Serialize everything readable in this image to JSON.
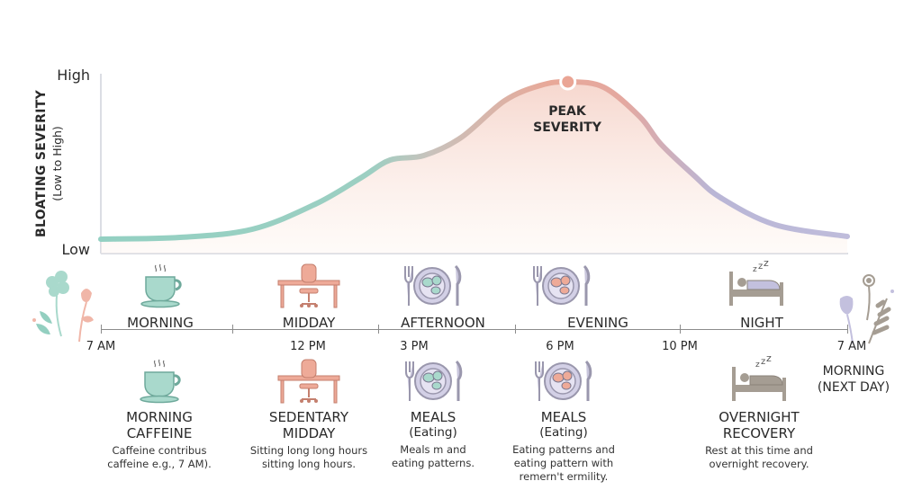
{
  "chart_data": {
    "type": "area",
    "title": "",
    "ylabel": "BLOATING SEVERITY",
    "ylabel_sub": "(Low to High)",
    "y_tick_labels": {
      "low": "Low",
      "high": "High"
    },
    "ylim": [
      0,
      1
    ],
    "x_tick_labels": [
      "7 AM",
      "12 PM",
      "3 PM",
      "6 PM",
      "10 PM",
      "7 AM"
    ],
    "grid": false,
    "series": [
      {
        "points": [
          {
            "time": "7:00 AM",
            "severity": 0.08
          },
          {
            "time": "9:33 AM",
            "severity": 0.09
          },
          {
            "time": "11:52 AM",
            "severity": 0.135
          },
          {
            "time": "1:54 PM",
            "severity": 0.275
          },
          {
            "time": "3:21 PM",
            "severity": 0.42
          },
          {
            "time": "4:18 PM",
            "severity": 0.52
          },
          {
            "time": "5:23 PM",
            "severity": 0.545
          },
          {
            "time": "6:35 PM",
            "severity": 0.645
          },
          {
            "time": "7:59 PM",
            "severity": 0.85
          },
          {
            "time": "9:08 PM",
            "severity": 0.935
          },
          {
            "time": "10:01 PM",
            "severity": 0.955
          },
          {
            "time": "11:10 PM",
            "severity": 0.925
          },
          {
            "time": "12:20 AM",
            "severity": 0.76
          },
          {
            "time": "1:00 AM",
            "severity": 0.61
          },
          {
            "time": "2:04 AM",
            "severity": 0.435
          },
          {
            "time": "2:56 AM",
            "severity": 0.31
          },
          {
            "time": "4:41 AM",
            "severity": 0.16
          },
          {
            "time": "7:00 AM",
            "severity": 0.095
          }
        ]
      }
    ],
    "annotation": {
      "line1": "PEAK",
      "line2": "SEVERITY",
      "time": "10:01 PM",
      "severity": 0.955
    },
    "colors": {
      "morning": "#93d0c2",
      "midday": "#c7c1bb",
      "evening": "#e8a898",
      "night": "#b9b6d6",
      "fill": "#f6dcd4"
    }
  },
  "periods": [
    "MORNING",
    "MIDDAY",
    "AFTERNOON",
    "EVENING",
    "NIGHT"
  ],
  "columns": [
    {
      "title": "MORNING",
      "title2": "CAFFEINE",
      "desc1": "Caffeine contribus",
      "desc2": "caffeine e.g., 7 AM).",
      "desc3": ""
    },
    {
      "title": "SEDENTARY",
      "title2": "MIDDAY",
      "desc1": "Sitting long long hours",
      "desc2": "sitting long hours.",
      "desc3": ""
    },
    {
      "title": "MEALS",
      "title2": "(Eating)",
      "desc1": "Meals m and",
      "desc2": "eating patterns.",
      "desc3": ""
    },
    {
      "title": "MEALS",
      "title2": "(Eating)",
      "desc1": "Eating patterns and",
      "desc2": "eating pattern with",
      "desc3": "remern't ermility."
    },
    {
      "title": "OVERNIGHT",
      "title2": "RECOVERY",
      "desc1": "Rest at this time and",
      "desc2": "overnight recovery.",
      "desc3": ""
    }
  ],
  "next_day": {
    "line1": "MORNING",
    "line2": "(NEXT DAY)"
  },
  "icons": [
    "coffee-cup-icon",
    "desk-chair-icon",
    "meal-plate-icon",
    "bed-sleep-icon",
    "flower-icon"
  ]
}
